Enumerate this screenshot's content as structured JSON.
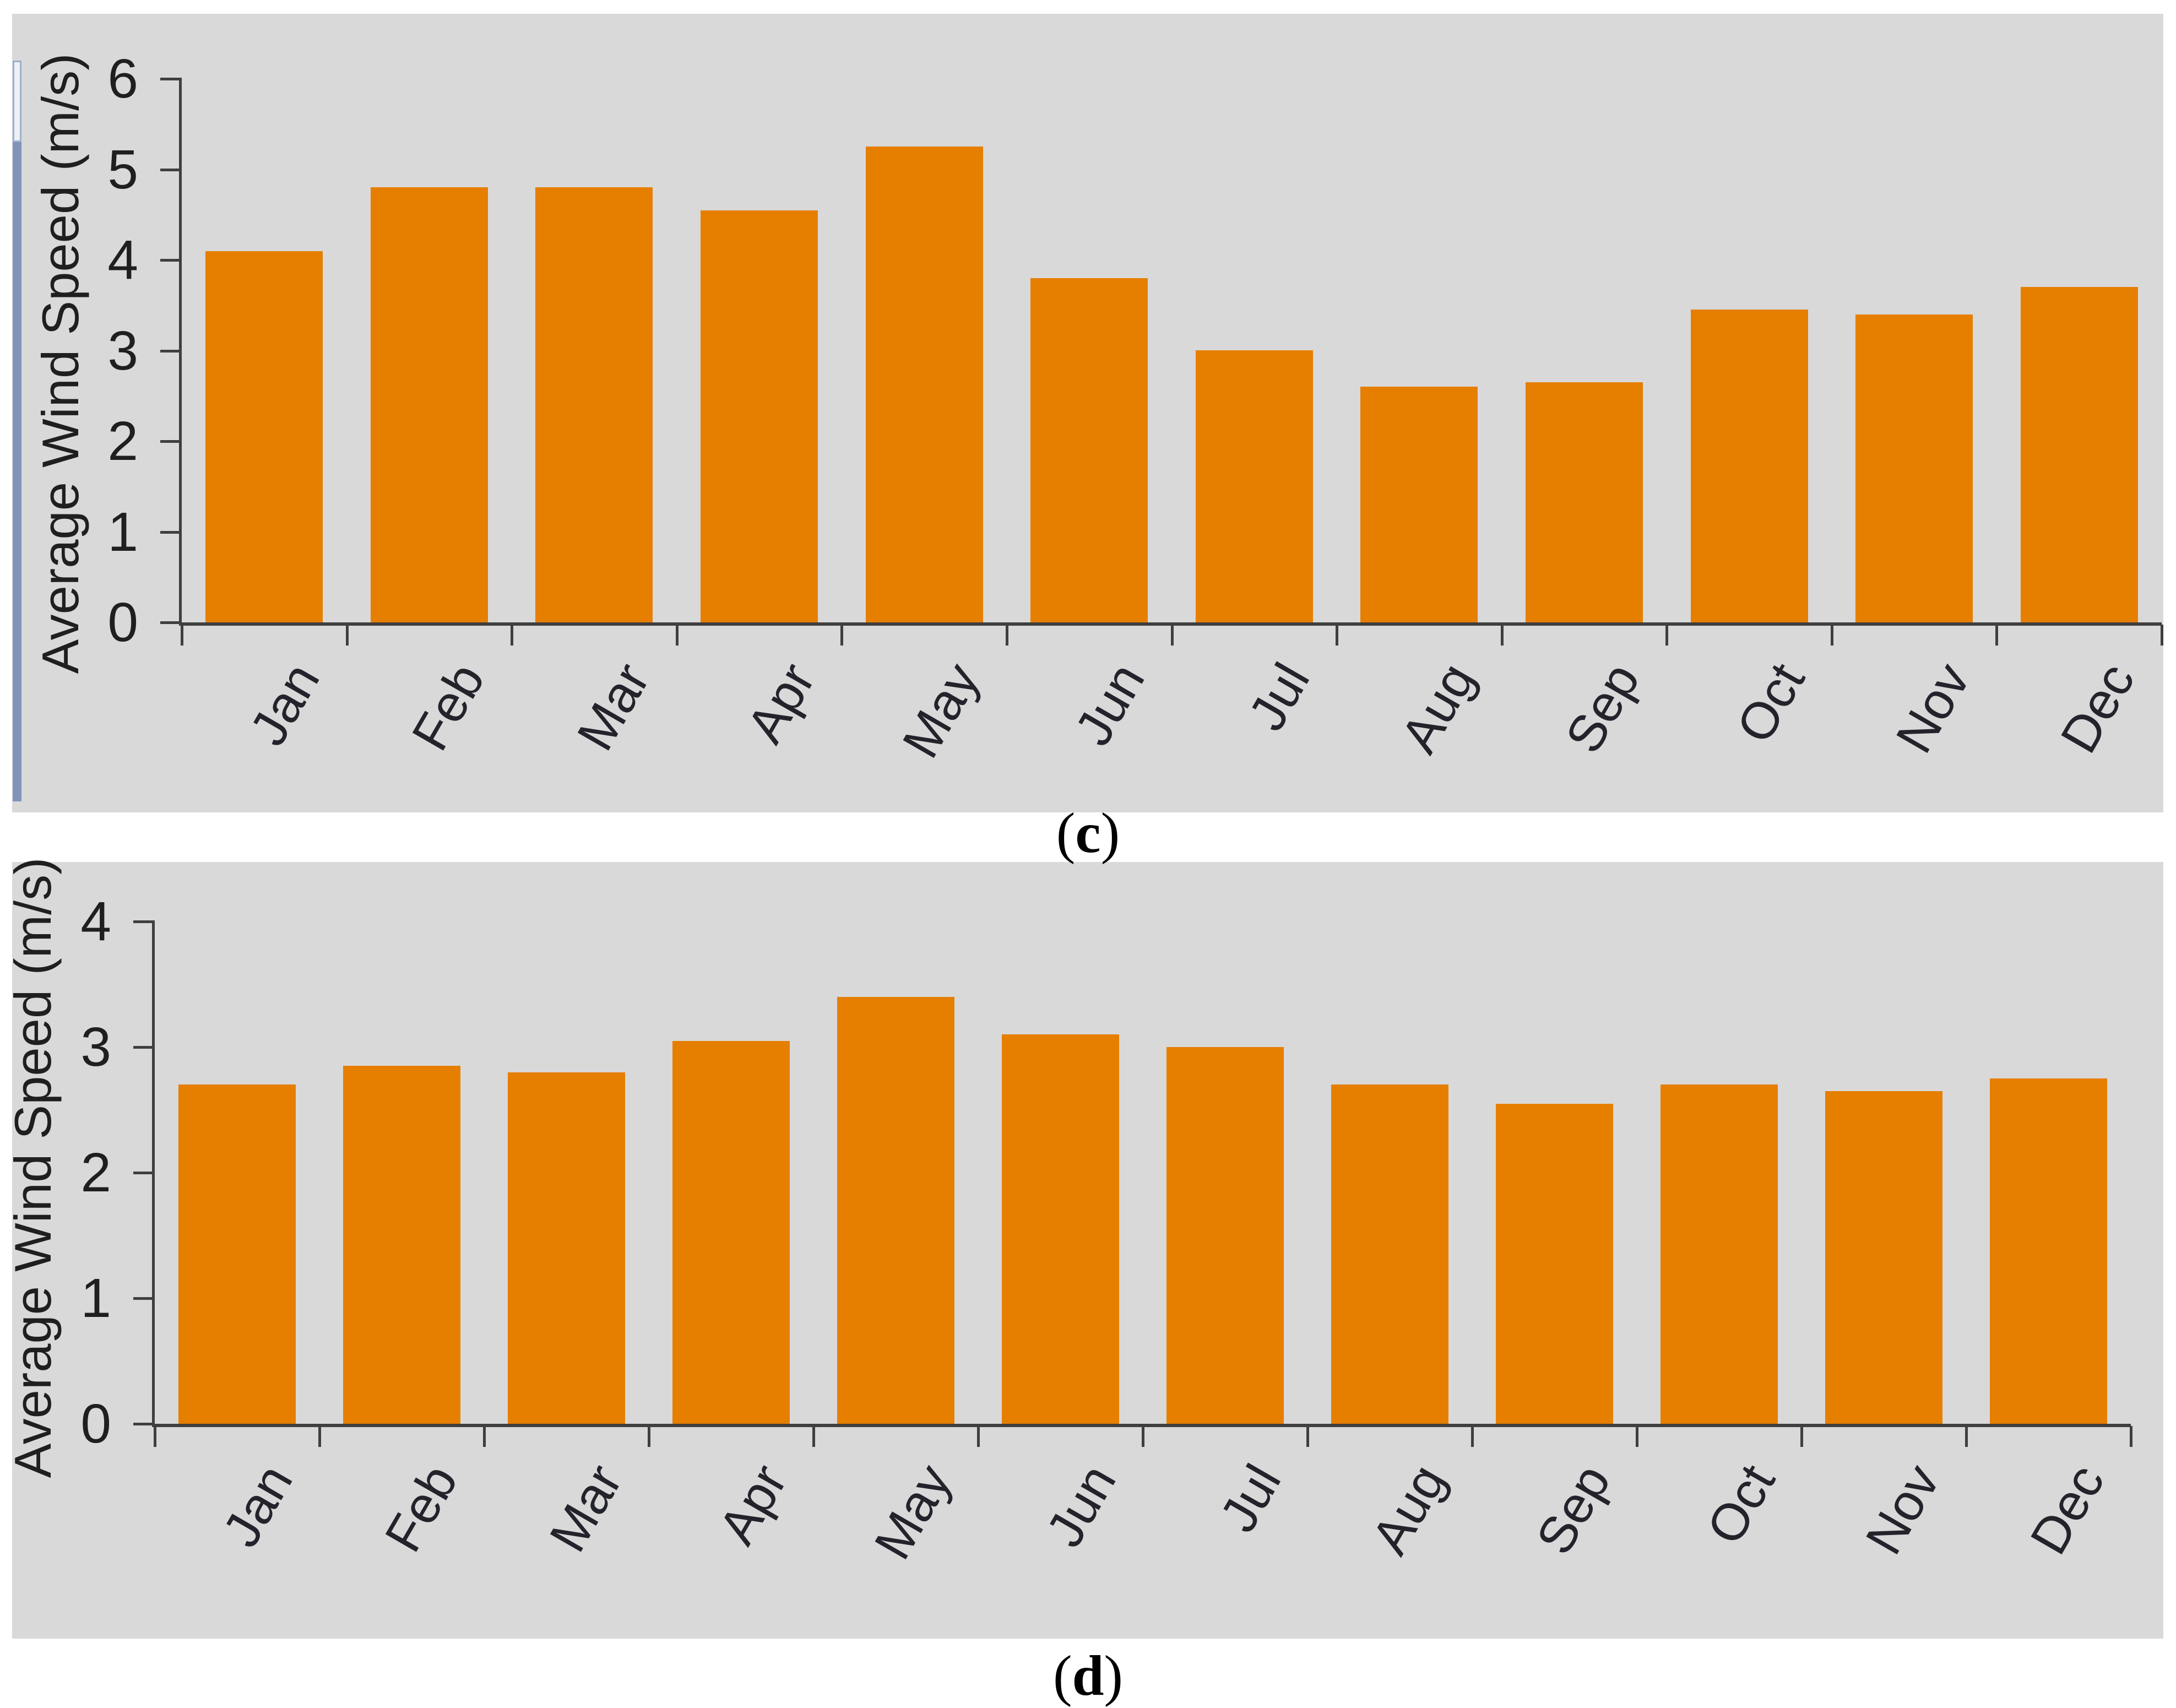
{
  "captions": {
    "open": "(",
    "close": ")",
    "c": "c",
    "d": "d"
  },
  "colors": {
    "background": "#ffffff",
    "panel": "#d9d9d9",
    "bar": "#e67e00",
    "axis": "#3f3f3f",
    "text": "#1f1f1f",
    "scrollbar_track": "#8094ba",
    "scrollbar_thumb": "#eef0f5"
  },
  "chart_data": [
    {
      "type": "bar",
      "id": "c",
      "caption": "(c)",
      "title": "",
      "xlabel": "",
      "ylabel": "Average Wind Speed (m/s)",
      "categories": [
        "Jan",
        "Feb",
        "Mar",
        "Apr",
        "May",
        "Jun",
        "Jul",
        "Aug",
        "Sep",
        "Oct",
        "Nov",
        "Dec"
      ],
      "values": [
        4.1,
        4.8,
        4.8,
        4.55,
        5.25,
        3.8,
        3.0,
        2.6,
        2.65,
        3.45,
        3.4,
        3.7
      ],
      "ylim": [
        0,
        6
      ],
      "yticks": [
        0,
        1,
        2,
        3,
        4,
        5,
        6
      ],
      "grid": false,
      "legend": null,
      "bar_color": "#e67e00"
    },
    {
      "type": "bar",
      "id": "d",
      "caption": "(d)",
      "title": "",
      "xlabel": "",
      "ylabel": "Average Wind Speed (m/s)",
      "categories": [
        "Jan",
        "Feb",
        "Mar",
        "Apr",
        "May",
        "Jun",
        "Jul",
        "Aug",
        "Sep",
        "Oct",
        "Nov",
        "Dec"
      ],
      "values": [
        2.7,
        2.85,
        2.8,
        3.05,
        3.4,
        3.1,
        3.0,
        2.7,
        2.55,
        2.7,
        2.65,
        2.75
      ],
      "ylim": [
        0,
        4
      ],
      "yticks": [
        0,
        1,
        2,
        3,
        4
      ],
      "grid": false,
      "legend": null,
      "bar_color": "#e67e00"
    }
  ]
}
